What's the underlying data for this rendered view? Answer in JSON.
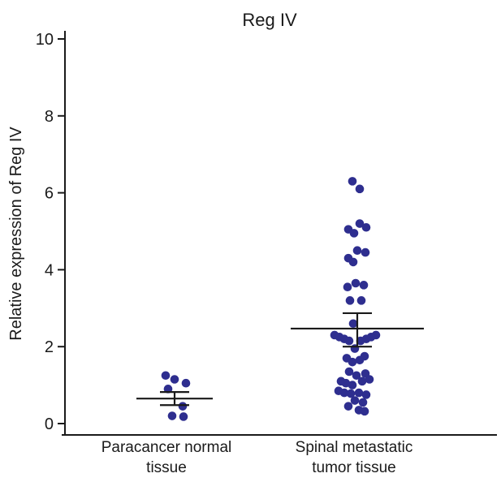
{
  "chart_data": {
    "type": "scatter",
    "title": "Reg IV",
    "xlabel": "",
    "ylabel": "Relative expression of Reg IV",
    "ylim": [
      0,
      10
    ],
    "yticks": [
      0,
      2,
      4,
      6,
      8,
      10
    ],
    "grid": false,
    "legend": "none",
    "point_color": "#2e2e8f",
    "line_color": "#1a1a1a",
    "categories": [
      {
        "label_lines": [
          "Paracancer normal",
          "tissue"
        ]
      },
      {
        "label_lines": [
          "Spinal metastatic",
          "tumor tissue"
        ]
      }
    ],
    "groups": [
      {
        "mean": 0.65,
        "sem_low": 0.48,
        "sem_high": 0.82,
        "points": [
          {
            "dx": -0.55,
            "y": 1.25
          },
          {
            "dx": 0.0,
            "y": 1.15
          },
          {
            "dx": 0.7,
            "y": 1.05
          },
          {
            "dx": -0.4,
            "y": 0.9
          },
          {
            "dx": 0.5,
            "y": 0.45
          },
          {
            "dx": -0.15,
            "y": 0.2
          },
          {
            "dx": 0.55,
            "y": 0.18
          }
        ]
      },
      {
        "mean": 2.47,
        "sem_low": 2.0,
        "sem_high": 2.87,
        "points": [
          {
            "dx": -0.3,
            "y": 6.3
          },
          {
            "dx": 0.15,
            "y": 6.1
          },
          {
            "dx": 0.15,
            "y": 5.2
          },
          {
            "dx": 0.55,
            "y": 5.1
          },
          {
            "dx": -0.55,
            "y": 5.05
          },
          {
            "dx": -0.2,
            "y": 4.95
          },
          {
            "dx": 0.0,
            "y": 4.5
          },
          {
            "dx": 0.5,
            "y": 4.45
          },
          {
            "dx": -0.55,
            "y": 4.3
          },
          {
            "dx": -0.25,
            "y": 4.2
          },
          {
            "dx": -0.1,
            "y": 3.65
          },
          {
            "dx": 0.4,
            "y": 3.6
          },
          {
            "dx": -0.6,
            "y": 3.55
          },
          {
            "dx": -0.45,
            "y": 3.2
          },
          {
            "dx": 0.25,
            "y": 3.2
          },
          {
            "dx": -0.25,
            "y": 2.6
          },
          {
            "dx": 1.15,
            "y": 2.3
          },
          {
            "dx": -1.4,
            "y": 2.3
          },
          {
            "dx": 0.85,
            "y": 2.25
          },
          {
            "dx": -1.1,
            "y": 2.25
          },
          {
            "dx": 0.55,
            "y": 2.2
          },
          {
            "dx": -0.8,
            "y": 2.2
          },
          {
            "dx": -0.5,
            "y": 2.15
          },
          {
            "dx": 0.2,
            "y": 2.15
          },
          {
            "dx": -0.15,
            "y": 1.95
          },
          {
            "dx": 0.45,
            "y": 1.75
          },
          {
            "dx": -0.65,
            "y": 1.7
          },
          {
            "dx": 0.15,
            "y": 1.65
          },
          {
            "dx": -0.3,
            "y": 1.6
          },
          {
            "dx": -0.5,
            "y": 1.35
          },
          {
            "dx": 0.5,
            "y": 1.3
          },
          {
            "dx": -0.05,
            "y": 1.25
          },
          {
            "dx": 0.75,
            "y": 1.15
          },
          {
            "dx": -1.0,
            "y": 1.1
          },
          {
            "dx": 0.3,
            "y": 1.1
          },
          {
            "dx": -0.7,
            "y": 1.05
          },
          {
            "dx": -0.3,
            "y": 1.0
          },
          {
            "dx": -1.15,
            "y": 0.85
          },
          {
            "dx": -0.8,
            "y": 0.8
          },
          {
            "dx": 0.1,
            "y": 0.8
          },
          {
            "dx": -0.4,
            "y": 0.78
          },
          {
            "dx": 0.55,
            "y": 0.75
          },
          {
            "dx": -0.15,
            "y": 0.6
          },
          {
            "dx": 0.35,
            "y": 0.55
          },
          {
            "dx": -0.55,
            "y": 0.45
          },
          {
            "dx": 0.1,
            "y": 0.35
          },
          {
            "dx": 0.45,
            "y": 0.32
          }
        ]
      }
    ]
  }
}
